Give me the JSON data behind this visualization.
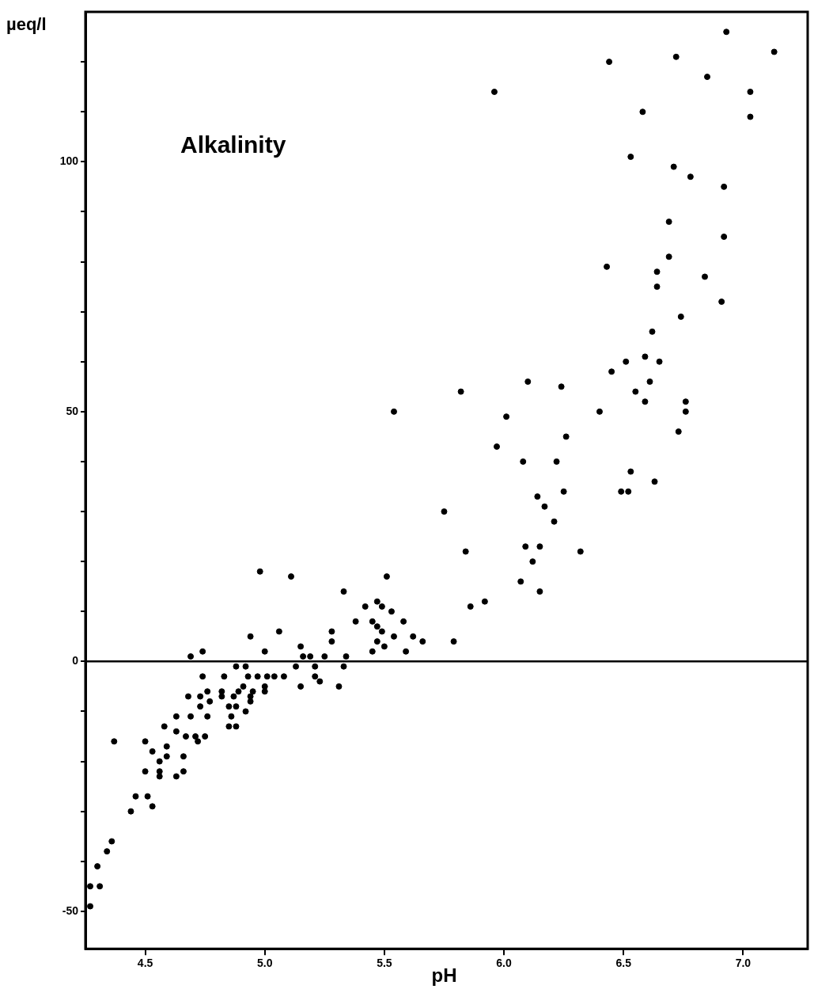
{
  "chart_data": {
    "type": "scatter",
    "xlabel": "pH",
    "ylabel": "µeq/l",
    "annotations": [
      "Alkalinity"
    ],
    "xlim": [
      4.25,
      7.27
    ],
    "ylim": [
      -57.5,
      130
    ],
    "xticks": [
      {
        "value": 4.5,
        "label": "4.5"
      },
      {
        "value": 5,
        "label": "5.0"
      },
      {
        "value": 5.5,
        "label": "5.5"
      },
      {
        "value": 6,
        "label": "6.0"
      },
      {
        "value": 6.5,
        "label": "6.5"
      },
      {
        "value": 7,
        "label": "7.0"
      }
    ],
    "yticks": [
      -50,
      {
        "value": -40,
        "label": null
      },
      {
        "value": -30,
        "label": null
      },
      {
        "value": -20,
        "label": null
      },
      {
        "value": -10,
        "label": null
      },
      0,
      {
        "value": 10,
        "label": null
      },
      {
        "value": 20,
        "label": null
      },
      {
        "value": 30,
        "label": null
      },
      {
        "value": 40,
        "label": null
      },
      50,
      {
        "value": 60,
        "label": null
      },
      {
        "value": 70,
        "label": null
      },
      {
        "value": 80,
        "label": null
      },
      {
        "value": 90,
        "label": null
      },
      100,
      {
        "value": 110,
        "label": null
      },
      {
        "value": 120,
        "label": null
      }
    ],
    "ref_lines": [
      {
        "axis": "y",
        "value": 0,
        "label": null,
        "color": "#000000"
      }
    ],
    "grid": false,
    "legend": false,
    "marker": "circle",
    "series": [
      {
        "color": "#000000",
        "x": [
          6.93,
          7.13,
          6.72,
          6.44,
          6.85,
          5.96,
          7.03,
          6.58,
          7.03,
          6.53,
          6.71,
          6.78,
          6.92,
          6.69,
          6.92,
          6.69,
          6.43,
          6.64,
          6.64,
          6.84,
          6.91,
          6.74,
          6.62,
          6.59,
          6.51,
          6.65,
          6.45,
          6.1,
          6.24,
          6.61,
          6.55,
          6.59,
          6.76,
          6.76,
          6.4,
          6.01,
          6.26,
          6.73,
          5.97,
          6.08,
          6.22,
          6.53,
          6.63,
          6.25,
          6.49,
          6.52,
          6.14,
          5.82,
          5.54,
          5.75,
          6.17,
          6.21,
          5.84,
          6.09,
          6.15,
          6.32,
          6.12,
          6.07,
          6.15,
          5.51,
          5.33,
          5.86,
          5.92,
          5.47,
          5.42,
          5.49,
          5.53,
          5.38,
          5.45,
          5.47,
          5.58,
          5.49,
          5.54,
          5.62,
          5.66,
          5.79,
          5.47,
          5.28,
          5.28,
          5.5,
          5.45,
          5.59,
          5.34,
          5.33,
          4.98,
          5.11,
          4.94,
          5.06,
          4.74,
          4.69,
          5.0,
          5.15,
          5.16,
          5.19,
          5.25,
          4.88,
          4.92,
          5.13,
          5.21,
          5.21,
          5.23,
          5.15,
          5.31,
          4.74,
          4.83,
          4.93,
          4.97,
          5.01,
          5.04,
          5.08,
          4.91,
          5.0,
          5.0,
          4.95,
          4.68,
          4.73,
          4.76,
          4.77,
          4.82,
          4.82,
          4.87,
          4.89,
          4.94,
          4.94,
          4.73,
          4.76,
          4.85,
          4.88,
          4.92,
          4.86,
          4.85,
          4.88,
          4.63,
          4.58,
          4.69,
          4.63,
          4.67,
          4.71,
          4.72,
          4.75,
          4.37,
          4.5,
          4.53,
          4.59,
          4.59,
          4.56,
          4.5,
          4.56,
          4.56,
          4.63,
          4.66,
          4.66,
          4.46,
          4.51,
          4.53,
          4.44,
          4.36,
          4.34,
          4.3,
          4.27,
          4.31,
          4.27
        ],
        "values": [
          126,
          122,
          121,
          120,
          117,
          114,
          114,
          110,
          109,
          101,
          99,
          97,
          95,
          88,
          85,
          81,
          79,
          78,
          75,
          77,
          72,
          69,
          66,
          61,
          60,
          60,
          58,
          56,
          55,
          56,
          54,
          52,
          52,
          50,
          50,
          49,
          45,
          46,
          43,
          40,
          40,
          38,
          36,
          34,
          34,
          34,
          33,
          54,
          50,
          30,
          31,
          28,
          22,
          23,
          23,
          22,
          20,
          16,
          14,
          17,
          14,
          11,
          12,
          12,
          11,
          11,
          10,
          8,
          8,
          7,
          8,
          6,
          5,
          5,
          4,
          4,
          4,
          6,
          4,
          3,
          2,
          2,
          1,
          -1,
          18,
          17,
          5,
          6,
          2,
          1,
          2,
          3,
          1,
          1,
          1,
          -1,
          -1,
          -1,
          -1,
          -3,
          -4,
          -5,
          -5,
          -3,
          -3,
          -3,
          -3,
          -3,
          -3,
          -3,
          -5,
          -5,
          -6,
          -6,
          -7,
          -7,
          -6,
          -8,
          -6,
          -7,
          -7,
          -6,
          -7,
          -8,
          -9,
          -11,
          -9,
          -9,
          -10,
          -11,
          -13,
          -13,
          -11,
          -13,
          -11,
          -14,
          -15,
          -15,
          -16,
          -15,
          -16,
          -16,
          -18,
          -17,
          -19,
          -20,
          -22,
          -22,
          -23,
          -23,
          -22,
          -19,
          -27,
          -27,
          -29,
          -30,
          -36,
          -38,
          -41,
          -45,
          -45,
          -49
        ]
      }
    ]
  }
}
